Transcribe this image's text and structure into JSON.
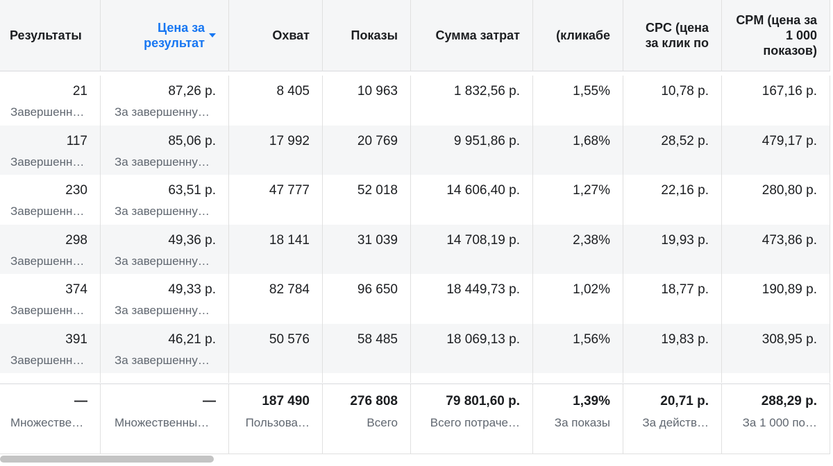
{
  "table": {
    "headers": [
      "Результаты",
      "Цена за результат",
      "Охват",
      "Показы",
      "Сумма затрат",
      "(кликабе",
      "CPC (цена за клик по",
      "CPM (цена за 1 000 показов)"
    ],
    "rows": [
      {
        "cells": [
          "21",
          "87,26 р.",
          "8 405",
          "10 963",
          "1 832,56 р.",
          "1,55%",
          "10,78 р.",
          "167,16 р."
        ],
        "notes": [
          "Завершенн…",
          "За завершенну…"
        ]
      },
      {
        "cells": [
          "117",
          "85,06 р.",
          "17 992",
          "20 769",
          "9 951,86 р.",
          "1,68%",
          "28,52 р.",
          "479,17 р."
        ],
        "notes": [
          "Завершенн…",
          "За завершенну…"
        ]
      },
      {
        "cells": [
          "230",
          "63,51 р.",
          "47 777",
          "52 018",
          "14 606,40 р.",
          "1,27%",
          "22,16 р.",
          "280,80 р."
        ],
        "notes": [
          "Завершенн…",
          "За завершенну…"
        ]
      },
      {
        "cells": [
          "298",
          "49,36 р.",
          "18 141",
          "31 039",
          "14 708,19 р.",
          "2,38%",
          "19,93 р.",
          "473,86 р."
        ],
        "notes": [
          "Завершенн…",
          "За завершенну…"
        ]
      },
      {
        "cells": [
          "374",
          "49,33 р.",
          "82 784",
          "96 650",
          "18 449,73 р.",
          "1,02%",
          "18,77 р.",
          "190,89 р."
        ],
        "notes": [
          "Завершенн…",
          "За завершенну…"
        ]
      },
      {
        "cells": [
          "391",
          "46,21 р.",
          "50 576",
          "58 485",
          "18 069,13 р.",
          "1,56%",
          "19,83 р.",
          "308,95 р."
        ],
        "notes": [
          "Завершенн…",
          "За завершенну…"
        ]
      }
    ],
    "totals": {
      "cells": [
        "—",
        "—",
        "187 490",
        "276 808",
        "79 801,60 р.",
        "1,39%",
        "20,71 р.",
        "288,29 р."
      ],
      "notes": [
        "Множестве…",
        "Множественны…",
        "Пользова…",
        "Всего",
        "Всего потраче…",
        "За показы",
        "За действ…",
        "За 1 000 по…"
      ]
    }
  }
}
